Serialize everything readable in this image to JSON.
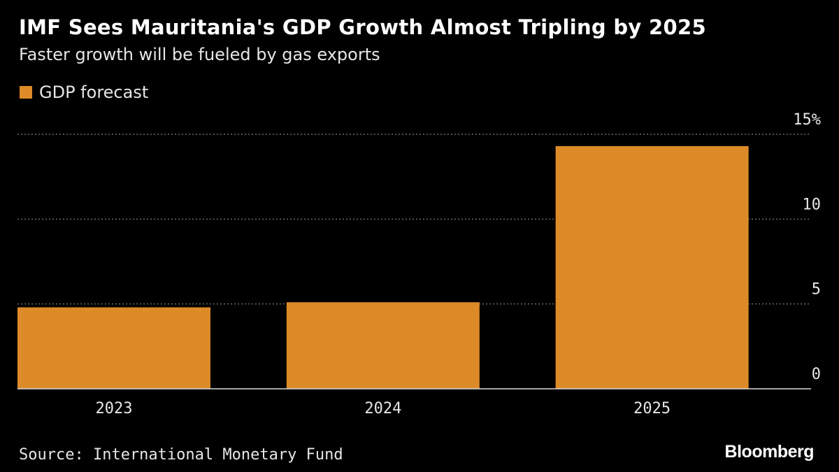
{
  "header": {
    "title": "IMF Sees Mauritania's GDP Growth Almost Tripling by 2025",
    "subtitle": "Faster growth will be fueled by gas exports"
  },
  "legend": {
    "label": "GDP forecast"
  },
  "footer": {
    "source": "Source: International Monetary Fund",
    "brand": "Bloomberg"
  },
  "colors": {
    "bar": "#dd8a28",
    "background": "#000000",
    "gridline": "#6b6b6b",
    "text": "#e6e6e6"
  },
  "chart_data": {
    "type": "bar",
    "categories": [
      "2023",
      "2024",
      "2025"
    ],
    "series": [
      {
        "name": "GDP forecast",
        "values": [
          4.8,
          5.1,
          14.3
        ]
      }
    ],
    "title": "IMF Sees Mauritania's GDP Growth Almost Tripling by 2025",
    "subtitle": "Faster growth will be fueled by gas exports",
    "xlabel": "",
    "ylabel": "",
    "ylim": [
      0,
      15
    ],
    "yticks": [
      0,
      5,
      10,
      15
    ],
    "ytick_labels": [
      "0",
      "5",
      "10",
      "15%"
    ],
    "grid": true,
    "legend_position": "top-left",
    "y_axis_side": "right"
  }
}
